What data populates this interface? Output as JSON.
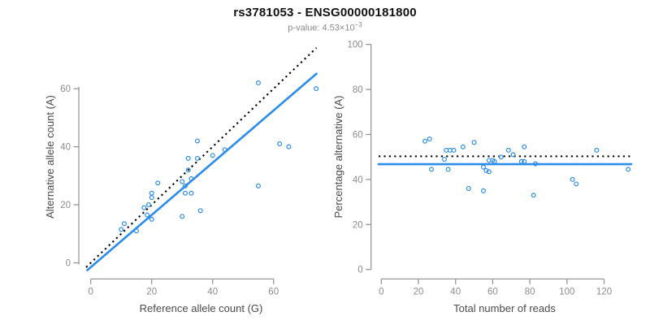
{
  "header": {
    "title": "rs3781053 - ENSG00000181800",
    "pvalue_prefix": "p-value: 4.53×10",
    "pvalue_exponent": "−3"
  },
  "colors": {
    "point_blue": "#2b8ceb",
    "line_blue": "#2b8ceb",
    "dotted_black": "#000000",
    "axis_line_gray": "#8f8f8f",
    "tick_text_gray": "#8c8c8c",
    "axis_label_gray": "#4a4a4a",
    "title_black": "#111111",
    "subtitle_gray": "#8a8a8a",
    "background": "#ffffff"
  },
  "chart_data": [
    {
      "type": "scatter",
      "name": "allele-counts-scatter",
      "xlabel": "Reference allele count (G)",
      "ylabel": "Alternative allele count (A)",
      "xticks": [
        0,
        20,
        40,
        60
      ],
      "yticks": [
        0,
        20,
        40,
        60
      ],
      "xlim": [
        -2,
        75
      ],
      "ylim": [
        -3,
        76
      ],
      "grid": false,
      "legend": "none",
      "marker": "open-circle",
      "points": [
        [
          10,
          11.5
        ],
        [
          11,
          13.5
        ],
        [
          15,
          11
        ],
        [
          17.5,
          19
        ],
        [
          18.5,
          16.5
        ],
        [
          19,
          20
        ],
        [
          20,
          15
        ],
        [
          20,
          22.5
        ],
        [
          20,
          24
        ],
        [
          22,
          27.5
        ],
        [
          30,
          16
        ],
        [
          30,
          28
        ],
        [
          31,
          24
        ],
        [
          31,
          26.5
        ],
        [
          32,
          32
        ],
        [
          32,
          36
        ],
        [
          33,
          24
        ],
        [
          33,
          29
        ],
        [
          35,
          36
        ],
        [
          35,
          42
        ],
        [
          36,
          18
        ],
        [
          40,
          37
        ],
        [
          44,
          39
        ],
        [
          55,
          26.5
        ],
        [
          55,
          62
        ],
        [
          62,
          41
        ],
        [
          65,
          40
        ],
        [
          74,
          60
        ]
      ],
      "lines": [
        {
          "name": "identity-line",
          "style": "dotted",
          "color": "#000000",
          "slope": 1,
          "intercept": 0
        },
        {
          "name": "regression-line",
          "style": "solid",
          "color": "#2b8ceb",
          "slope": 0.9,
          "intercept": -1.5
        }
      ]
    },
    {
      "type": "scatter",
      "name": "percentage-vs-coverage-scatter",
      "xlabel": "Total number of reads",
      "ylabel": "Percentage alternative (A)",
      "xticks": [
        0,
        20,
        40,
        60,
        80,
        100,
        120
      ],
      "yticks": [
        0,
        20,
        40,
        60,
        80,
        100
      ],
      "xlim": [
        -5,
        138
      ],
      "ylim": [
        -2,
        102
      ],
      "grid": false,
      "legend": "none",
      "marker": "open-circle",
      "points": [
        [
          23.5,
          57
        ],
        [
          26,
          58
        ],
        [
          27,
          44.5
        ],
        [
          34,
          49
        ],
        [
          35,
          53
        ],
        [
          36,
          44.5
        ],
        [
          37,
          53
        ],
        [
          39,
          53
        ],
        [
          44,
          54.5
        ],
        [
          47,
          36
        ],
        [
          50,
          56.5
        ],
        [
          55,
          45.5
        ],
        [
          55,
          35
        ],
        [
          56.5,
          44
        ],
        [
          58,
          43.5
        ],
        [
          58,
          48.5
        ],
        [
          60,
          48.5
        ],
        [
          61,
          48
        ],
        [
          64.5,
          50
        ],
        [
          68.5,
          53
        ],
        [
          71,
          51
        ],
        [
          75.5,
          48
        ],
        [
          77,
          54.5
        ],
        [
          77,
          48
        ],
        [
          82,
          33
        ],
        [
          83,
          47
        ],
        [
          103,
          40
        ],
        [
          105,
          38
        ],
        [
          116,
          53
        ],
        [
          133,
          44.5
        ]
      ],
      "lines": [
        {
          "name": "expected-50pct-line",
          "style": "dotted",
          "color": "#000000",
          "slope": 0,
          "intercept": 50.3
        },
        {
          "name": "mean-percentage-line",
          "style": "solid",
          "color": "#2b8ceb",
          "slope": 0,
          "intercept": 46.8
        }
      ]
    }
  ]
}
